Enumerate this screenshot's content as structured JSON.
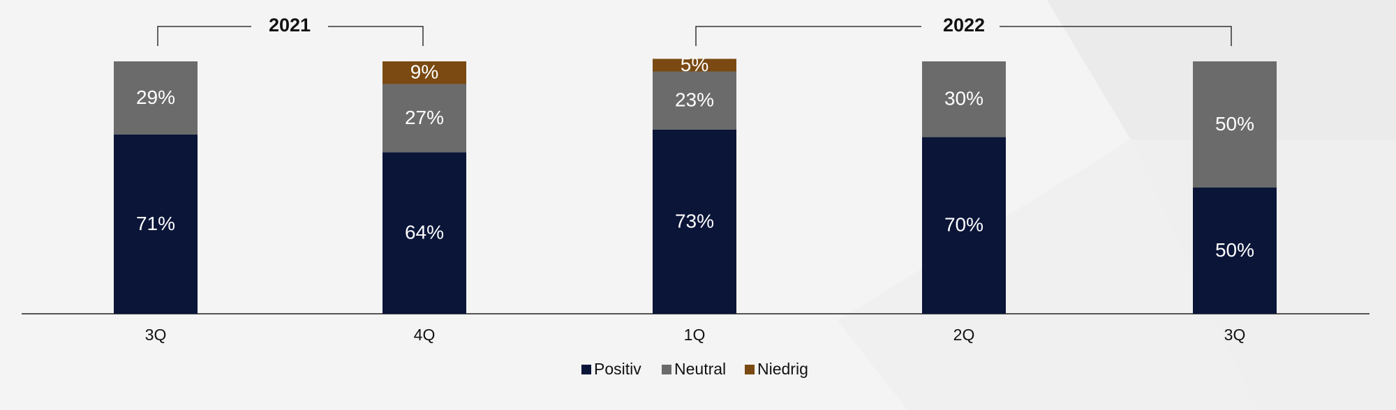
{
  "chart_data": {
    "type": "stacked_bar",
    "group_labels": [
      "2021",
      "2022"
    ],
    "categories": [
      "3Q",
      "4Q",
      "1Q",
      "2Q",
      "3Q"
    ],
    "series": [
      {
        "name": "Positiv",
        "color": "#0a1538",
        "values": [
          71,
          64,
          73,
          70,
          50
        ],
        "value_labels": [
          "71%",
          "64%",
          "73%",
          "70%",
          "50%"
        ]
      },
      {
        "name": "Neutral",
        "color": "#6b6b6b",
        "values": [
          29,
          27,
          23,
          30,
          50
        ],
        "value_labels": [
          "29%",
          "27%",
          "23%",
          "30%",
          "50%"
        ]
      },
      {
        "name": "Niedrig",
        "color": "#7a4a12",
        "values": [
          null,
          9,
          5,
          null,
          null
        ],
        "value_labels": [
          null,
          "9%",
          "5%",
          null,
          null
        ]
      }
    ],
    "ylim": [
      0,
      100
    ]
  }
}
